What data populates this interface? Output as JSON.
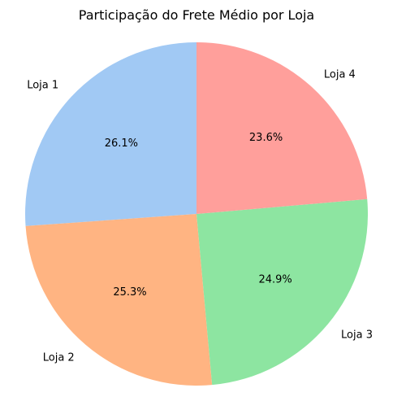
{
  "chart_data": {
    "type": "pie",
    "title": "Participação do Frete Médio por Loja",
    "categories": [
      "Loja 1",
      "Loja 2",
      "Loja 3",
      "Loja 4"
    ],
    "values": [
      26.1,
      25.3,
      24.9,
      23.6
    ],
    "value_labels": [
      "26.1%",
      "25.3%",
      "24.9%",
      "23.6%"
    ],
    "colors": [
      "#a1c9f4",
      "#ffb482",
      "#8de5a1",
      "#ff9f9b"
    ],
    "start_angle_deg": 90,
    "direction": "counterclockwise"
  }
}
